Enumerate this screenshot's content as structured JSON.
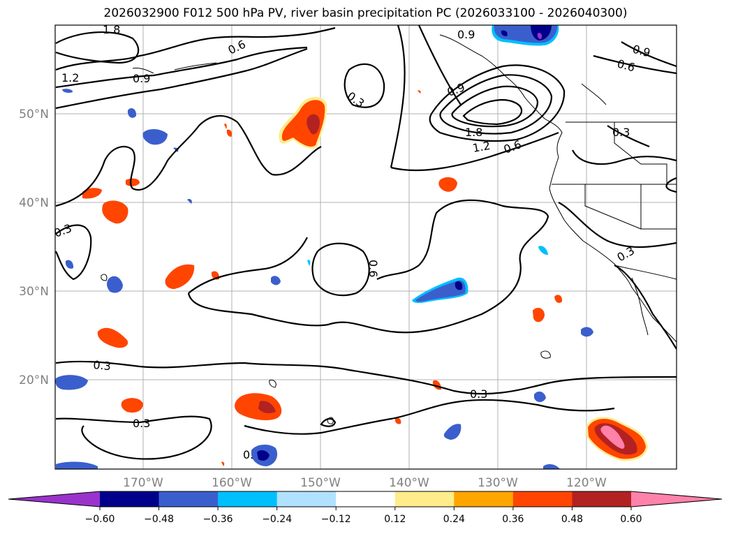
{
  "title": "2026032900 F012 500 hPa PV, river basin precipitation PC (2026033100 - 2026040300)",
  "lat_labels": [
    "50°N",
    "40°N",
    "30°N",
    "20°N"
  ],
  "lon_labels": [
    "170°W",
    "160°W",
    "150°W",
    "140°W",
    "130°W",
    "120°W"
  ],
  "contour_labels": {
    "c18a": "1.8",
    "c12a": "1.2",
    "c09a": "0.9",
    "c06a": "0.6",
    "c03a": "0.3",
    "c09b": "0.9",
    "c18b": "1.8",
    "c12b": "1.2",
    "c06b": "0.6",
    "c09c": "0.9",
    "c06c": "0.6",
    "c03b": "0.3",
    "c03c": "0.3",
    "c06d": "0.6",
    "c03d": "0.3",
    "c03e": "0.3",
    "c03f": "0.3",
    "c03g": "0.3",
    "c0h": "0.",
    "c09d": "0.9"
  },
  "colorbar": {
    "colors": [
      "#9933cc",
      "#00008b",
      "#3a5fcd",
      "#00bfff",
      "#b0e2ff",
      "#ffffff",
      "#ffec8b",
      "#ffa500",
      "#ff4500",
      "#b22222",
      "#ff82ab"
    ],
    "ticks": [
      "−0.60",
      "−0.48",
      "−0.36",
      "−0.24",
      "−0.12",
      "0.12",
      "0.24",
      "0.36",
      "0.48",
      "0.60"
    ]
  }
}
